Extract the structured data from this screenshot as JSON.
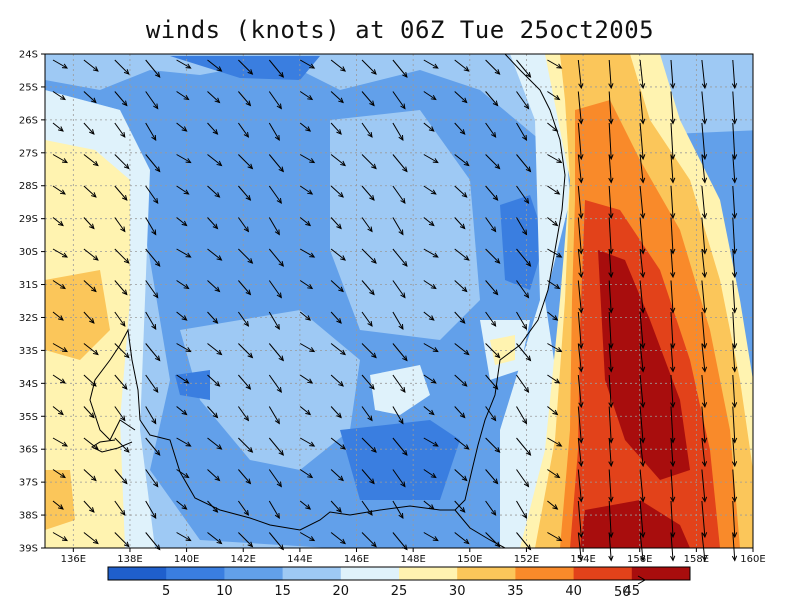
{
  "title": "winds (knots) at 06Z Tue 25oct2005",
  "map": {
    "lat_labels": [
      "24S",
      "25S",
      "26S",
      "27S",
      "28S",
      "29S",
      "30S",
      "31S",
      "32S",
      "33S",
      "34S",
      "35S",
      "36S",
      "37S",
      "38S",
      "39S"
    ],
    "lon_labels": [
      "136E",
      "138E",
      "140E",
      "142E",
      "144E",
      "146E",
      "148E",
      "150E",
      "152E",
      "154E",
      "156E",
      "158E",
      "160E"
    ],
    "lat_range": [
      -39,
      -24
    ],
    "lon_range": [
      135,
      160
    ],
    "grid": true,
    "vector_reference": "50",
    "colors": {
      "0-5": "#1f5fcc",
      "5-10": "#3a7ee0",
      "10-15": "#62a0ea",
      "15-20": "#9ec9f4",
      "20-25": "#dff2fb",
      "25-30": "#fff3b0",
      "30-35": "#fbc65a",
      "35-40": "#f98a2a",
      "40-45": "#e2421a",
      "45+": "#a80d0d",
      "coast": "#000000",
      "arrow": "#000000"
    }
  },
  "colorbar": {
    "labels": [
      "5",
      "10",
      "15",
      "20",
      "25",
      "30",
      "35",
      "40",
      "45"
    ],
    "colors": [
      "#1f5fcc",
      "#3a7ee0",
      "#62a0ea",
      "#9ec9f4",
      "#dff2fb",
      "#fff3b0",
      "#fbc65a",
      "#f98a2a",
      "#e2421a",
      "#a80d0d"
    ]
  }
}
